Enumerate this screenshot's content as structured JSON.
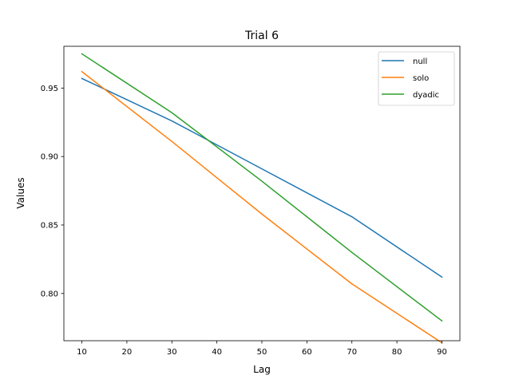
{
  "chart_data": {
    "type": "line",
    "title": "Trial 6",
    "xlabel": "Lag",
    "ylabel": "Values",
    "x": [
      10,
      30,
      50,
      70,
      90
    ],
    "xticks": [
      10,
      20,
      30,
      40,
      50,
      60,
      70,
      80,
      90
    ],
    "yticks": [
      0.8,
      0.85,
      0.9,
      0.95
    ],
    "ytick_labels": [
      "0.80",
      "0.85",
      "0.90",
      "0.95"
    ],
    "xlim": [
      6,
      94
    ],
    "ylim": [
      0.7655,
      0.9805
    ],
    "grid": false,
    "legend_position": "upper right",
    "series": [
      {
        "name": "null",
        "color": "#1f77b4",
        "values": [
          0.957,
          0.926,
          0.891,
          0.856,
          0.812
        ]
      },
      {
        "name": "solo",
        "color": "#ff7f0e",
        "values": [
          0.962,
          0.911,
          0.858,
          0.807,
          0.764
        ]
      },
      {
        "name": "dyadic",
        "color": "#2ca02c",
        "values": [
          0.975,
          0.932,
          0.882,
          0.83,
          0.78
        ]
      }
    ]
  }
}
